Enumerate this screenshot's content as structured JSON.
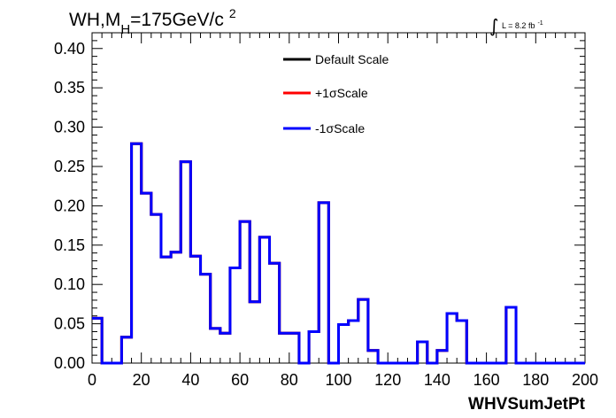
{
  "chart_data": {
    "type": "line",
    "title_main": "WH,M",
    "title_sub": "H",
    "title_rest": "=175GeV/c",
    "title_sup": "2",
    "lumi_integral": "∫",
    "lumi_label": "L = 8.2 fb",
    "lumi_sup": "-1",
    "xlabel": "WHVSumJetPt",
    "ylabel": "",
    "xlim": [
      0,
      200
    ],
    "ylim": [
      0,
      0.42
    ],
    "x_ticks": [
      0,
      20,
      40,
      60,
      80,
      100,
      120,
      140,
      160,
      180,
      200
    ],
    "x_tick_labels": [
      "0",
      "20",
      "40",
      "60",
      "80",
      "100",
      "120",
      "140",
      "160",
      "180",
      "200"
    ],
    "y_ticks": [
      0.0,
      0.05,
      0.1,
      0.15,
      0.2,
      0.25,
      0.3,
      0.35,
      0.4
    ],
    "y_tick_labels": [
      "0.00",
      "0.05",
      "0.10",
      "0.15",
      "0.20",
      "0.25",
      "0.30",
      "0.35",
      "0.40"
    ],
    "bin_edges": [
      0,
      4,
      8,
      12,
      16,
      20,
      24,
      28,
      32,
      36,
      40,
      44,
      48,
      52,
      56,
      60,
      64,
      68,
      72,
      76,
      80,
      84,
      88,
      92,
      96,
      100,
      104,
      108,
      112,
      116,
      120,
      124,
      128,
      132,
      136,
      140,
      144,
      148,
      152,
      156,
      160,
      164,
      168,
      172,
      176,
      180,
      184,
      188,
      192,
      196,
      200
    ],
    "legend": [
      {
        "label": "Default Scale",
        "color": "#000000"
      },
      {
        "label": "+1σScale",
        "color": "#ff0000"
      },
      {
        "label": "-1σScale",
        "color": "#0000ff"
      }
    ],
    "series": [
      {
        "name": "Default Scale",
        "color": "#000000",
        "values": [
          0.057,
          0.0,
          0.0,
          0.033,
          0.279,
          0.216,
          0.189,
          0.135,
          0.141,
          0.256,
          0.136,
          0.113,
          0.044,
          0.038,
          0.121,
          0.18,
          0.078,
          0.16,
          0.127,
          0.038,
          0.038,
          0.0,
          0.04,
          0.204,
          0.0,
          0.049,
          0.054,
          0.081,
          0.016,
          0.0,
          0.0,
          0.0,
          0.0,
          0.027,
          0.0,
          0.016,
          0.063,
          0.054,
          0.0,
          0.0,
          0.0,
          0.0,
          0.071,
          0.0,
          0.0,
          0.0,
          0.0,
          0.0,
          0.0,
          0.0
        ]
      },
      {
        "name": "+1σScale",
        "color": "#ff0000",
        "values": [
          0.057,
          0.0,
          0.0,
          0.033,
          0.279,
          0.216,
          0.189,
          0.135,
          0.141,
          0.256,
          0.136,
          0.113,
          0.044,
          0.038,
          0.121,
          0.18,
          0.078,
          0.16,
          0.127,
          0.038,
          0.038,
          0.0,
          0.04,
          0.204,
          0.0,
          0.049,
          0.054,
          0.081,
          0.016,
          0.0,
          0.0,
          0.0,
          0.0,
          0.027,
          0.0,
          0.016,
          0.063,
          0.054,
          0.0,
          0.0,
          0.0,
          0.0,
          0.071,
          0.0,
          0.0,
          0.0,
          0.0,
          0.0,
          0.0,
          0.0
        ]
      },
      {
        "name": "-1σScale",
        "color": "#0000ff",
        "values": [
          0.057,
          0.0,
          0.0,
          0.033,
          0.279,
          0.216,
          0.189,
          0.135,
          0.141,
          0.256,
          0.136,
          0.113,
          0.044,
          0.038,
          0.121,
          0.18,
          0.078,
          0.16,
          0.127,
          0.038,
          0.038,
          0.0,
          0.04,
          0.204,
          0.0,
          0.049,
          0.054,
          0.081,
          0.016,
          0.0,
          0.0,
          0.0,
          0.0,
          0.027,
          0.0,
          0.016,
          0.063,
          0.054,
          0.0,
          0.0,
          0.0,
          0.0,
          0.071,
          0.0,
          0.0,
          0.0,
          0.0,
          0.0,
          0.0,
          0.0
        ]
      }
    ]
  }
}
